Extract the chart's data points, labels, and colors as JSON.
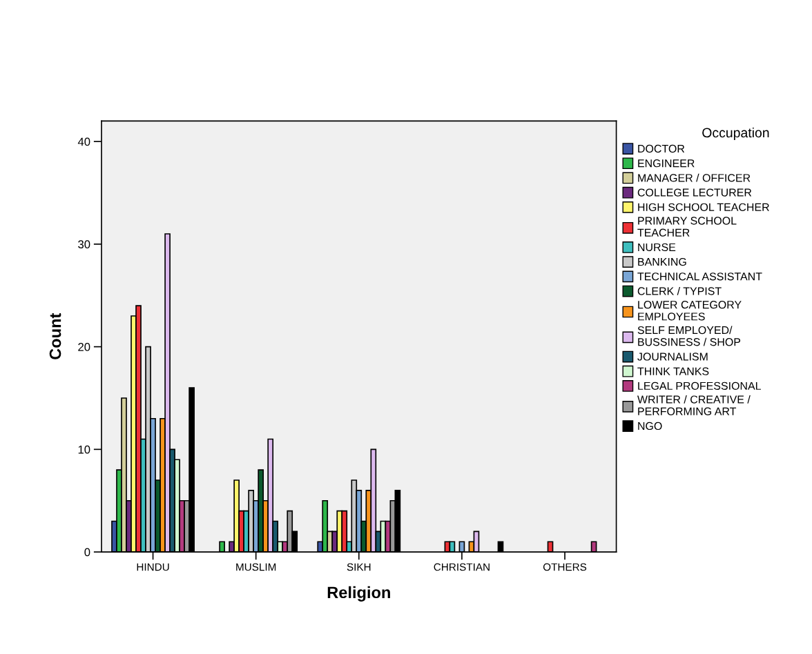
{
  "chart_data": {
    "type": "bar",
    "xlabel": "Religion",
    "ylabel": "Count",
    "legend_title": "Occupation",
    "legend": "right",
    "grid": false,
    "categories": [
      "HINDU",
      "MUSLIM",
      "SIKH",
      "CHRISTIAN",
      "OTHERS"
    ],
    "ylim": [
      0,
      42
    ],
    "yticks": [
      0,
      10,
      20,
      30,
      40
    ],
    "series": [
      {
        "name": "DOCTOR",
        "color": "#3a55a4",
        "values": [
          3,
          null,
          1,
          null,
          null
        ]
      },
      {
        "name": "ENGINEER",
        "color": "#2eb84b",
        "values": [
          8,
          1,
          5,
          null,
          null
        ]
      },
      {
        "name": "MANAGER / OFFICER",
        "color": "#d3cf9a",
        "values": [
          15,
          null,
          2,
          null,
          null
        ]
      },
      {
        "name": "COLLEGE LECTURER",
        "color": "#6b2a7e",
        "values": [
          5,
          1,
          2,
          null,
          null
        ]
      },
      {
        "name": "HIGH SCHOOL TEACHER",
        "color": "#fff56c",
        "values": [
          23,
          7,
          4,
          null,
          null
        ]
      },
      {
        "name": "PRIMARY SCHOOL\nTEACHER",
        "color": "#ee3136",
        "values": [
          24,
          4,
          4,
          1,
          1
        ]
      },
      {
        "name": "NURSE",
        "color": "#3fbfbf",
        "values": [
          11,
          4,
          1,
          1,
          null
        ]
      },
      {
        "name": "BANKING",
        "color": "#c8c8c8",
        "values": [
          20,
          6,
          7,
          null,
          null
        ]
      },
      {
        "name": "TECHNICAL ASSISTANT",
        "color": "#7aa6d6",
        "values": [
          13,
          5,
          6,
          1,
          null
        ]
      },
      {
        "name": "CLERK / TYPIST",
        "color": "#0c5a2e",
        "values": [
          7,
          8,
          3,
          null,
          null
        ]
      },
      {
        "name": "LOWER CATEGORY\nEMPLOYEES",
        "color": "#f7941d",
        "values": [
          13,
          5,
          6,
          1,
          null
        ]
      },
      {
        "name": "SELF EMPLOYED/\nBUSSINESS / SHOP",
        "color": "#dcb9ee",
        "values": [
          31,
          11,
          10,
          2,
          null
        ]
      },
      {
        "name": "JOURNALISM",
        "color": "#1a5a6e",
        "values": [
          10,
          3,
          2,
          null,
          null
        ]
      },
      {
        "name": "THINK TANKS",
        "color": "#d0f7d0",
        "values": [
          9,
          1,
          3,
          null,
          null
        ]
      },
      {
        "name": "LEGAL PROFESSIONAL",
        "color": "#b23a7e",
        "values": [
          5,
          1,
          3,
          null,
          1
        ]
      },
      {
        "name": "WRITER / CREATIVE /\nPERFORMING ART",
        "color": "#999999",
        "values": [
          5,
          4,
          5,
          null,
          null
        ]
      },
      {
        "name": "NGO",
        "color": "#000000",
        "values": [
          16,
          2,
          6,
          1,
          null
        ]
      }
    ]
  }
}
